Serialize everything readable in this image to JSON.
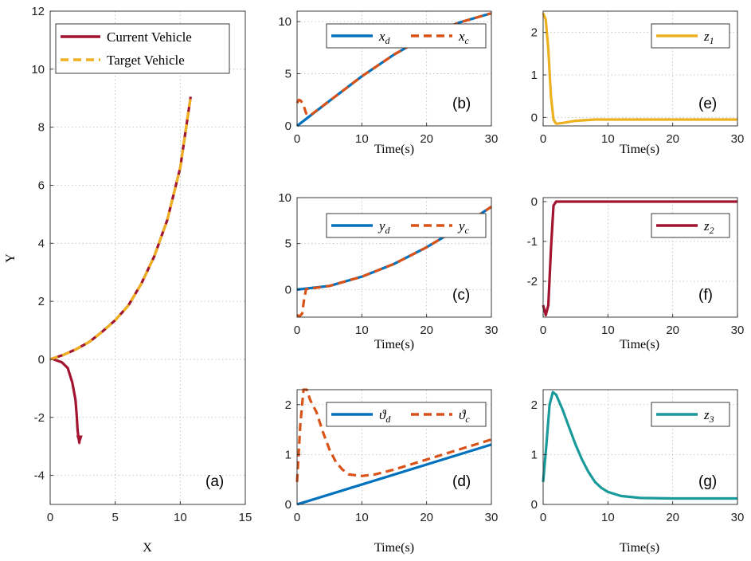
{
  "colors": {
    "blue": "#0072BD",
    "orange": "#D95319",
    "darkred": "#A2142F",
    "yellow": "#EDB120",
    "teal": "#1A9A9A"
  },
  "chart_data": [
    {
      "id": "a",
      "type": "line",
      "panel_label": "(a)",
      "xlabel": "X",
      "ylabel": "Y",
      "xlim": [
        0,
        15
      ],
      "ylim": [
        -5,
        12
      ],
      "xticks": [
        0,
        5,
        10,
        15
      ],
      "yticks": [
        -4,
        -2,
        0,
        2,
        4,
        6,
        8,
        10,
        12
      ],
      "grid": true,
      "legend_position": "top-left",
      "series": [
        {
          "name": "Current Vehicle",
          "color": "darkred",
          "dash": "solid",
          "x": [
            0.25,
            0.9,
            1.35,
            1.7,
            1.95,
            2.05,
            2.1,
            2.15,
            2.2,
            2.25
          ],
          "y": [
            0.0,
            -0.1,
            -0.3,
            -0.8,
            -1.4,
            -2.0,
            -2.4,
            -2.6,
            -2.75,
            -2.9
          ]
        },
        {
          "name": "Current Vehicle (overlaid)",
          "color": "darkred",
          "dash": "solid",
          "in_legend": false,
          "x": [
            0,
            1,
            2,
            3,
            4,
            5,
            6,
            7,
            8,
            9,
            10,
            10.8
          ],
          "y": [
            0,
            0.15,
            0.35,
            0.6,
            0.95,
            1.35,
            1.85,
            2.6,
            3.55,
            4.8,
            6.6,
            9.05
          ]
        },
        {
          "name": "Target Vehicle",
          "color": "yellow",
          "dash": "dashed",
          "x": [
            0,
            1,
            2,
            3,
            4,
            5,
            6,
            7,
            8,
            9,
            10,
            10.8
          ],
          "y": [
            0,
            0.15,
            0.35,
            0.6,
            0.95,
            1.35,
            1.85,
            2.6,
            3.55,
            4.8,
            6.6,
            9.05
          ]
        }
      ]
    },
    {
      "id": "b",
      "type": "line",
      "panel_label": "(b)",
      "xlabel": "Time(s)",
      "ylabel": "",
      "xlim": [
        0,
        30
      ],
      "ylim": [
        0,
        11
      ],
      "xticks": [
        0,
        10,
        20,
        30
      ],
      "yticks": [
        0,
        5,
        10
      ],
      "grid": true,
      "legend_position": "top-right",
      "series": [
        {
          "name": "x_d",
          "legend_main": "x",
          "legend_sub": "d",
          "color": "blue",
          "dash": "solid",
          "x": [
            0,
            5,
            10,
            15,
            20,
            25,
            30
          ],
          "y": [
            0,
            2.4,
            4.75,
            6.85,
            8.6,
            9.9,
            10.8
          ]
        },
        {
          "name": "x_c",
          "legend_main": "x",
          "legend_sub": "c",
          "color": "orange",
          "dash": "dashed",
          "x": [
            0,
            0.3,
            0.6,
            1.0,
            1.4,
            2,
            5,
            10,
            15,
            20,
            25,
            30
          ],
          "y": [
            2.2,
            2.5,
            2.4,
            2.0,
            1.2,
            1.0,
            2.4,
            4.75,
            6.85,
            8.6,
            9.9,
            10.8
          ]
        }
      ]
    },
    {
      "id": "c",
      "type": "line",
      "panel_label": "(c)",
      "xlabel": "Time(s)",
      "ylabel": "",
      "xlim": [
        0,
        30
      ],
      "ylim": [
        -3,
        10
      ],
      "xticks": [
        0,
        10,
        20,
        30
      ],
      "yticks": [
        0,
        5,
        10
      ],
      "grid": true,
      "legend_position": "top-right",
      "series": [
        {
          "name": "y_d",
          "legend_main": "y",
          "legend_sub": "d",
          "color": "blue",
          "dash": "solid",
          "x": [
            0,
            5,
            10,
            15,
            20,
            25,
            30
          ],
          "y": [
            0,
            0.4,
            1.4,
            2.8,
            4.6,
            6.7,
            9.0
          ]
        },
        {
          "name": "y_c",
          "legend_main": "y",
          "legend_sub": "c",
          "color": "orange",
          "dash": "dashed",
          "x": [
            0,
            0.4,
            0.8,
            1.1,
            1.4,
            2,
            5,
            10,
            15,
            20,
            25,
            30
          ],
          "y": [
            -2.8,
            -2.9,
            -2.6,
            -1.0,
            0.05,
            0.1,
            0.4,
            1.4,
            2.8,
            4.6,
            6.7,
            9.0
          ]
        }
      ]
    },
    {
      "id": "d",
      "type": "line",
      "panel_label": "(d)",
      "xlabel": "Time(s)",
      "ylabel": "",
      "xlim": [
        0,
        30
      ],
      "ylim": [
        0,
        2.3
      ],
      "xticks": [
        0,
        10,
        20,
        30
      ],
      "yticks": [
        0,
        1,
        2
      ],
      "grid": true,
      "legend_position": "top-right",
      "series": [
        {
          "name": "θ_d",
          "legend_main": "ϑ",
          "legend_sub": "d",
          "color": "blue",
          "dash": "solid",
          "x": [
            0,
            30
          ],
          "y": [
            0,
            1.2
          ]
        },
        {
          "name": "θ_c",
          "legend_main": "ϑ",
          "legend_sub": "c",
          "color": "orange",
          "dash": "dashed",
          "x": [
            0,
            0.5,
            1,
            1.5,
            2,
            3,
            4,
            5,
            6,
            7,
            8,
            10,
            12,
            15,
            20,
            25,
            30
          ],
          "y": [
            0.45,
            1.6,
            2.3,
            2.3,
            2.1,
            1.85,
            1.45,
            1.1,
            0.85,
            0.7,
            0.6,
            0.57,
            0.6,
            0.7,
            0.9,
            1.1,
            1.3
          ]
        }
      ]
    },
    {
      "id": "e",
      "type": "line",
      "panel_label": "(e)",
      "xlabel": "Time(s)",
      "ylabel": "",
      "xlim": [
        0,
        30
      ],
      "ylim": [
        -0.2,
        2.5
      ],
      "xticks": [
        0,
        10,
        20,
        30
      ],
      "yticks": [
        0,
        1,
        2
      ],
      "grid": true,
      "legend_position": "top-right",
      "series": [
        {
          "name": "z_1",
          "legend_main": "z",
          "legend_sub": "1",
          "color": "yellow",
          "dash": "solid",
          "x": [
            0,
            0.4,
            0.8,
            1.2,
            1.6,
            2,
            3,
            5,
            8,
            30
          ],
          "y": [
            2.45,
            2.3,
            1.6,
            0.5,
            -0.05,
            -0.15,
            -0.13,
            -0.08,
            -0.05,
            -0.05
          ]
        }
      ]
    },
    {
      "id": "f",
      "type": "line",
      "panel_label": "(f)",
      "xlabel": "Time(s)",
      "ylabel": "",
      "xlim": [
        0,
        30
      ],
      "ylim": [
        -2.9,
        0.1
      ],
      "xticks": [
        0,
        10,
        20,
        30
      ],
      "yticks": [
        0,
        -1,
        -2
      ],
      "grid": true,
      "legend_position": "top-right",
      "series": [
        {
          "name": "z_2",
          "legend_main": "z",
          "legend_sub": "2",
          "color": "darkred",
          "dash": "solid",
          "x": [
            0,
            0.4,
            0.8,
            1.2,
            1.6,
            2,
            3,
            30
          ],
          "y": [
            -2.6,
            -2.85,
            -2.6,
            -1.2,
            -0.1,
            0,
            0,
            0
          ]
        }
      ]
    },
    {
      "id": "g",
      "type": "line",
      "panel_label": "(g)",
      "xlabel": "Time(s)",
      "ylabel": "",
      "xlim": [
        0,
        30
      ],
      "ylim": [
        0,
        2.3
      ],
      "xticks": [
        0,
        10,
        20,
        30
      ],
      "yticks": [
        0,
        1,
        2
      ],
      "grid": true,
      "legend_position": "top-right",
      "series": [
        {
          "name": "z_3",
          "legend_main": "z",
          "legend_sub": "3",
          "color": "teal",
          "dash": "solid",
          "x": [
            0,
            0.5,
            1,
            1.5,
            2,
            3,
            4,
            5,
            6,
            7,
            8,
            9,
            10,
            12,
            15,
            20,
            25,
            30
          ],
          "y": [
            0.45,
            1.2,
            2.0,
            2.25,
            2.2,
            1.9,
            1.55,
            1.2,
            0.9,
            0.65,
            0.45,
            0.33,
            0.25,
            0.17,
            0.13,
            0.12,
            0.12,
            0.12
          ]
        }
      ]
    }
  ]
}
